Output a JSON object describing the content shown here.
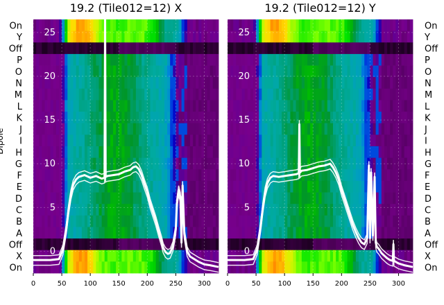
{
  "chart_data": [
    {
      "type": "heatmap",
      "title": "19.2 (Tile012=12) X",
      "xlabel": "",
      "ylabel": "Dipole",
      "xlim": [
        0,
        325
      ],
      "x_ticks": [
        0,
        50,
        100,
        150,
        200,
        250,
        300
      ],
      "overlay_ylim": [
        -2.5,
        26.5
      ],
      "overlay_y_ticks": [
        0,
        5,
        10,
        15,
        20,
        25
      ],
      "categories": [
        "On",
        "Y",
        "Off",
        "P",
        "O",
        "N",
        "M",
        "L",
        "K",
        "J",
        "I",
        "H",
        "G",
        "F",
        "E",
        "D",
        "C",
        "B",
        "A",
        "Off",
        "X",
        "On"
      ],
      "colormap": "nipy_spectral",
      "overlay_series": [
        {
          "x": [
            0,
            30,
            45,
            52,
            58,
            62,
            66,
            70,
            75,
            80,
            90,
            100,
            110,
            120,
            125,
            126,
            127,
            130,
            140,
            150,
            160,
            170,
            175,
            180,
            185,
            190,
            195,
            200,
            205,
            210,
            215,
            220,
            225,
            228,
            232,
            236,
            240,
            245,
            250,
            252,
            255,
            258,
            260,
            262,
            265,
            268,
            270,
            275,
            280,
            290,
            300,
            310,
            325
          ],
          "y": [
            -1.0,
            -1.0,
            -0.9,
            0.2,
            2.6,
            4.8,
            6.5,
            7.6,
            8.2,
            8.5,
            8.7,
            8.4,
            8.6,
            8.3,
            8.4,
            26.5,
            8.5,
            8.6,
            8.7,
            8.8,
            9.1,
            9.3,
            9.6,
            9.7,
            9.4,
            8.7,
            7.7,
            6.8,
            5.5,
            4.5,
            3.5,
            2.3,
            1.2,
            0.4,
            -0.1,
            -0.3,
            -0.2,
            0.6,
            2.5,
            5.5,
            7.0,
            6.2,
            1.0,
            7.5,
            2.0,
            0.8,
            0.0,
            -0.6,
            -0.8,
            -1.2,
            -1.5,
            -1.6,
            -1.8
          ]
        }
      ]
    },
    {
      "type": "heatmap",
      "title": "19.2 (Tile012=12) Y",
      "xlabel": "",
      "ylabel": "",
      "xlim": [
        0,
        325
      ],
      "x_ticks": [
        0,
        50,
        100,
        150,
        200,
        250,
        300
      ],
      "overlay_ylim": [
        -2.5,
        26.5
      ],
      "overlay_y_ticks": [
        0,
        5,
        10,
        15,
        20,
        25
      ],
      "categories": [
        "On",
        "Y",
        "Off",
        "P",
        "O",
        "N",
        "M",
        "L",
        "K",
        "J",
        "I",
        "H",
        "G",
        "F",
        "E",
        "D",
        "C",
        "B",
        "A",
        "Off",
        "X",
        "On"
      ],
      "colormap": "nipy_spectral",
      "overlay_series": [
        {
          "x": [
            0,
            30,
            45,
            52,
            58,
            62,
            66,
            70,
            75,
            80,
            90,
            100,
            110,
            120,
            125,
            126,
            127,
            130,
            140,
            150,
            160,
            170,
            175,
            180,
            185,
            190,
            195,
            200,
            205,
            210,
            215,
            220,
            225,
            230,
            235,
            240,
            245,
            248,
            250,
            252,
            255,
            258,
            260,
            262,
            265,
            268,
            270,
            275,
            280,
            285,
            290,
            291,
            292,
            300,
            310,
            325
          ],
          "y": [
            -1.0,
            -1.0,
            -0.9,
            0.2,
            2.8,
            5.0,
            6.8,
            7.8,
            8.4,
            8.6,
            8.5,
            8.6,
            8.7,
            8.8,
            8.9,
            14.5,
            9.0,
            9.2,
            9.3,
            9.5,
            9.7,
            9.8,
            9.9,
            10.0,
            9.6,
            9.0,
            8.2,
            7.0,
            6.0,
            5.0,
            4.0,
            3.0,
            2.2,
            1.5,
            1.0,
            0.8,
            1.5,
            9.8,
            1.5,
            9.0,
            1.8,
            8.5,
            1.0,
            0.5,
            0.3,
            0.0,
            -0.2,
            -0.5,
            -0.8,
            -1.0,
            -1.1,
            0.8,
            -1.1,
            -1.4,
            -1.6,
            -1.8
          ]
        }
      ]
    }
  ]
}
